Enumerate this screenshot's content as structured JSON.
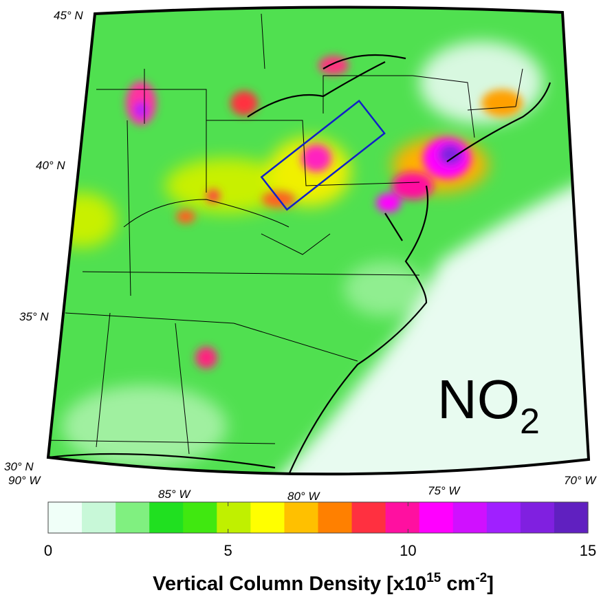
{
  "map": {
    "label": {
      "text": "NO",
      "subscript": "2"
    },
    "lat_labels": [
      "45° N",
      "40° N",
      "35° N",
      "30° N"
    ],
    "lon_labels": [
      "90° W",
      "85° W",
      "80° W",
      "75° W",
      "70° W"
    ]
  },
  "colorbar": {
    "lim": [
      0,
      15
    ],
    "ticks": [
      0,
      5,
      10,
      15
    ],
    "colors": [
      "#f0fff8",
      "#c8f8d8",
      "#80f080",
      "#20e020",
      "#40e810",
      "#c0f000",
      "#ffff00",
      "#ffc000",
      "#ff8000",
      "#ff3040",
      "#ff10a0",
      "#ff00ff",
      "#d010ff",
      "#a020ff",
      "#8020e0",
      "#6020c0"
    ],
    "label": {
      "text": "Vertical Column Density [x10",
      "exp1": "15",
      "unit": " cm",
      "exp2": "-2",
      "end": "]"
    }
  }
}
